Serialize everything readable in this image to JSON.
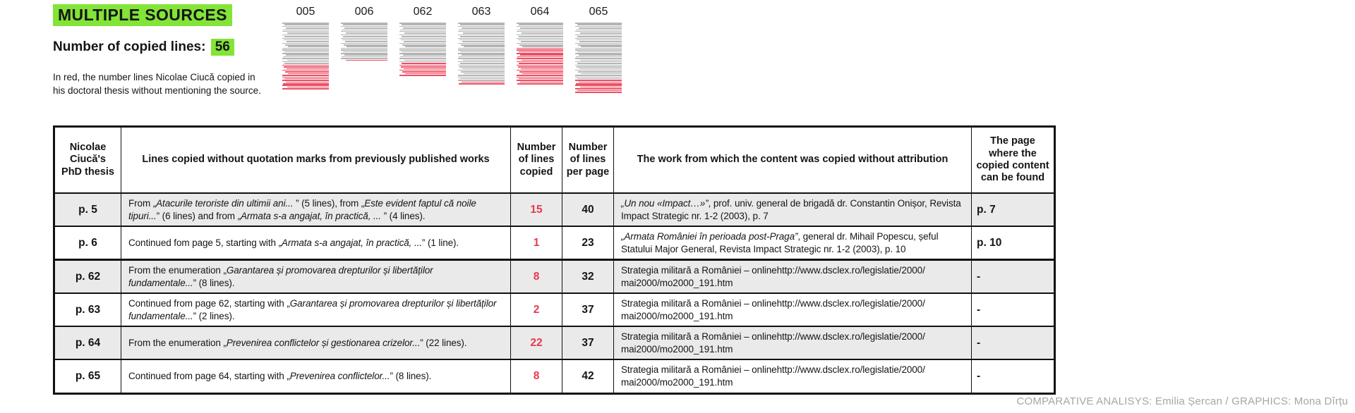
{
  "colors": {
    "accent_green": "#82E437",
    "accent_red": "#E63950",
    "thumb_red": "#ED4D62",
    "thumb_gray": "#B5B5B5",
    "row_shade": "#EAEAEA",
    "border": "#111111",
    "credit_gray": "#A6A6A6"
  },
  "header": {
    "title": "MULTIPLE SOURCES",
    "copied_label": "Number of copied lines: ",
    "copied_value": "56",
    "note": "In red, the number lines Nicolae Ciucă copied in\nhis doctoral thesis without mentioning the source."
  },
  "chart_data": {
    "type": "table",
    "title": "MULTIPLE SOURCES",
    "total_copied_lines": 56,
    "note": "In red, the number lines Nicolae Ciucă copied in his doctoral thesis without mentioning the source.",
    "pages": [
      {
        "page": "005",
        "lines_per_page": 40,
        "copied_lines": 15,
        "red_start": 26
      },
      {
        "page": "006",
        "lines_per_page": 23,
        "copied_lines": 1,
        "red_start": 23
      },
      {
        "page": "062",
        "lines_per_page": 32,
        "copied_lines": 8,
        "red_start": 25
      },
      {
        "page": "063",
        "lines_per_page": 37,
        "copied_lines": 2,
        "red_start": 36
      },
      {
        "page": "064",
        "lines_per_page": 37,
        "copied_lines": 22,
        "red_start": 16
      },
      {
        "page": "065",
        "lines_per_page": 42,
        "copied_lines": 8,
        "red_start": 35
      }
    ]
  },
  "table": {
    "headers": [
      "Nicolae Ciucă's PhD thesis",
      "Lines copied without quotation marks from previously published works",
      "Number of lines copied",
      "Number of lines per page",
      "The work from which the content was copied without attribution",
      "The page where the copied content can be found"
    ],
    "rows": [
      {
        "page": "p. 5",
        "desc": [
          {
            "t": "From „",
            "i": 0
          },
          {
            "t": "Atacurile teroriste din ultimii ani... ",
            "i": 1
          },
          {
            "t": "” (5 lines), from „",
            "i": 0
          },
          {
            "t": "Este evident faptul că noile tipuri...",
            "i": 1
          },
          {
            "t": "” (6 lines) and from „",
            "i": 0
          },
          {
            "t": "Armata s-a angajat, în practică, ... ",
            "i": 1
          },
          {
            "t": "” (4 lines).",
            "i": 0
          }
        ],
        "copied": "15",
        "per_page": "40",
        "source": [
          {
            "t": "„Un nou «Impact…»”",
            "i": 1
          },
          {
            "t": ", prof. univ. general de brigadă dr. Constantin Onișor, Revista Impact Strategic nr. 1-2 (2003), p. 7",
            "i": 0
          }
        ],
        "found": "p. 7",
        "shaded": true,
        "group_end": false
      },
      {
        "page": "p. 6",
        "desc": [
          {
            "t": "Continued fom page 5, starting with „",
            "i": 0
          },
          {
            "t": "Armata s-a angajat, în practică, ...",
            "i": 1
          },
          {
            "t": "” (1 line).",
            "i": 0
          }
        ],
        "copied": "1",
        "per_page": "23",
        "source": [
          {
            "t": "„Armata României în perioada post-Praga”",
            "i": 1
          },
          {
            "t": ", general dr. Mihail Popescu, șeful Statului Major General, Revista Impact Strategic nr. 1-2 (2003), p. 10",
            "i": 0
          }
        ],
        "found": "p. 10",
        "shaded": false,
        "group_end": true
      },
      {
        "page": "p. 62",
        "desc": [
          {
            "t": "From the enumeration „",
            "i": 0
          },
          {
            "t": "Garantarea și promovarea drepturilor și libertăților fundamentale...",
            "i": 1
          },
          {
            "t": "” (8 lines).",
            "i": 0
          }
        ],
        "copied": "8",
        "per_page": "32",
        "source": [
          {
            "t": "Strategia militară a României – onlinehttp://www.dsclex.ro/legislatie/2000/",
            "i": 0
          },
          {
            "br": true
          },
          {
            "t": "mai2000/mo2000_191.htm",
            "i": 0
          }
        ],
        "found": "-",
        "shaded": true,
        "group_end": false
      },
      {
        "page": "p. 63",
        "desc": [
          {
            "t": "Continued from page 62, starting with „",
            "i": 0
          },
          {
            "t": "Garantarea și promovarea drepturilor și libertăților fundamentale...",
            "i": 1
          },
          {
            "t": "” (2 lines).",
            "i": 0
          }
        ],
        "copied": "2",
        "per_page": "37",
        "source": [
          {
            "t": "Strategia militară a României – onlinehttp://www.dsclex.ro/legislatie/2000/",
            "i": 0
          },
          {
            "br": true
          },
          {
            "t": "mai2000/mo2000_191.htm",
            "i": 0
          }
        ],
        "found": "-",
        "shaded": false,
        "group_end": false
      },
      {
        "page": "p. 64",
        "desc": [
          {
            "t": "From the enumeration „",
            "i": 0
          },
          {
            "t": "Prevenirea conflictelor și gestionarea crizelor...",
            "i": 1
          },
          {
            "t": "” (22 lines).",
            "i": 0
          }
        ],
        "copied": "22",
        "per_page": "37",
        "source": [
          {
            "t": "Strategia militară a României – onlinehttp://www.dsclex.ro/legislatie/2000/",
            "i": 0
          },
          {
            "br": true
          },
          {
            "t": "mai2000/mo2000_191.htm",
            "i": 0
          }
        ],
        "found": "-",
        "shaded": true,
        "group_end": false
      },
      {
        "page": "p. 65",
        "desc": [
          {
            "t": "Continued from page 64, starting with „",
            "i": 0
          },
          {
            "t": "Prevenirea conflictelor...",
            "i": 1
          },
          {
            "t": "” (8 lines).",
            "i": 0
          }
        ],
        "copied": "8",
        "per_page": "42",
        "source": [
          {
            "t": "Strategia militară a României – onlinehttp://www.dsclex.ro/legislatie/2000/",
            "i": 0
          },
          {
            "br": true
          },
          {
            "t": "mai2000/mo2000_191.htm",
            "i": 0
          }
        ],
        "found": "-",
        "shaded": false,
        "group_end": false
      }
    ]
  },
  "footer": {
    "credit": "COMPARATIVE ANALISYS: Emilia Șercan / GRAPHICS: Mona Dîrțu"
  }
}
